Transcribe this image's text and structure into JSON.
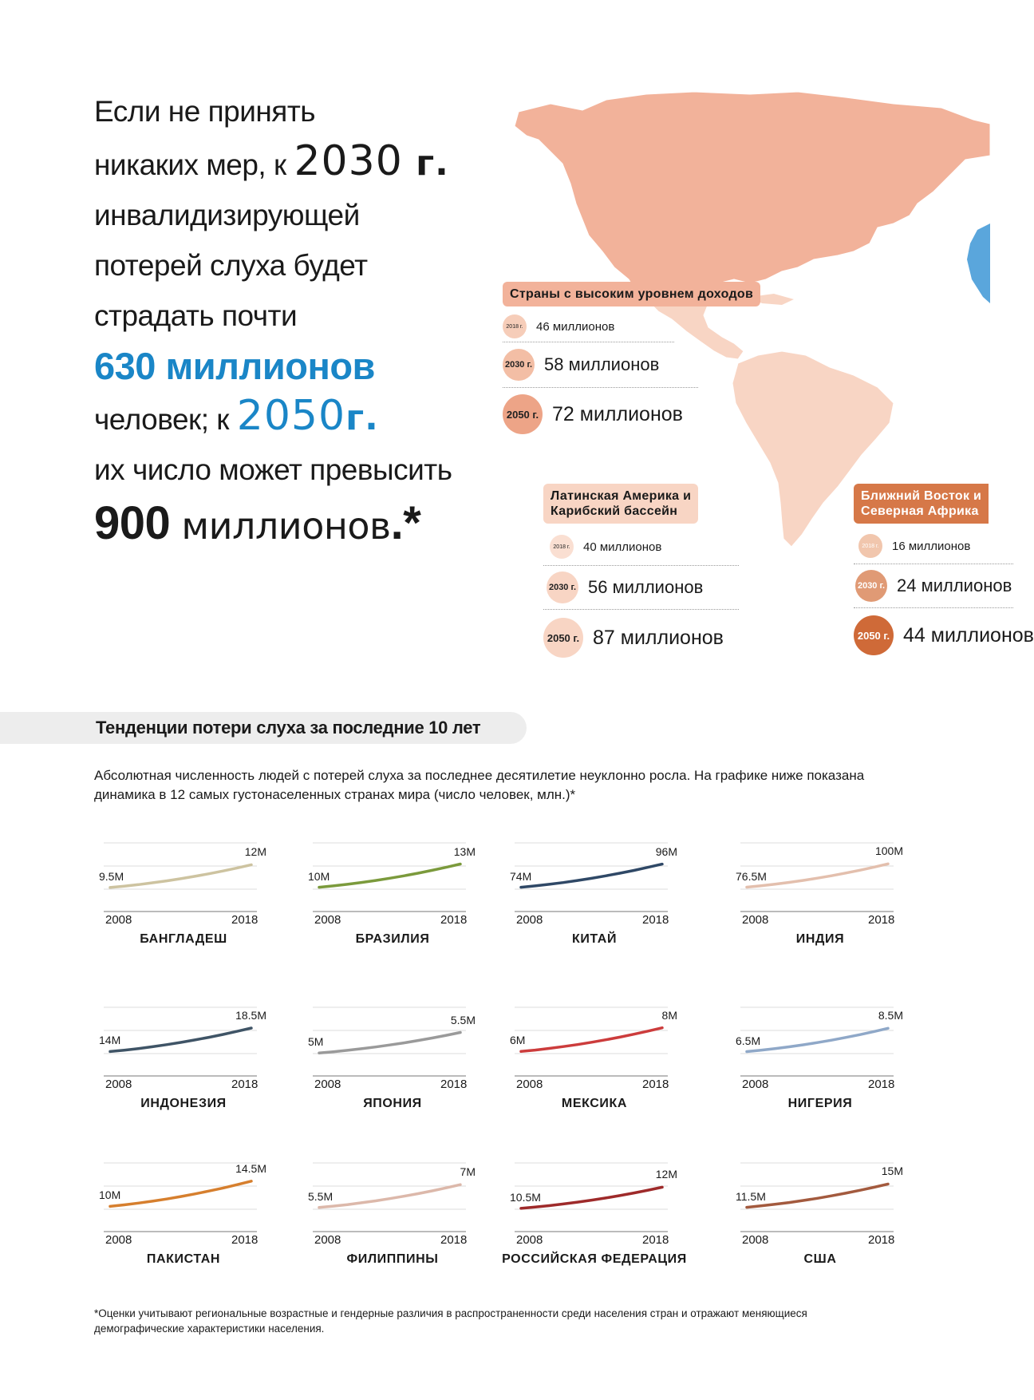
{
  "headline": {
    "l1": "Если не принять",
    "l2_pre": "никаких мер, к ",
    "l2_year": "2030",
    "l2_unit": " г.",
    "l3": "инвалидизирующей",
    "l4": "потерей слуха будет",
    "l5": "страдать почти",
    "l6": "630 миллионов",
    "l7_pre": "человек; к ",
    "l7_year": "2050",
    "l7_unit": "г.",
    "l8": "их число может превысить",
    "l9_num": "900",
    "l9_text": " миллионов",
    "l9_mark": ".*"
  },
  "colors": {
    "accent_blue": "#1a86c7",
    "high_income": "#f2b29a",
    "latin_america": "#f8d5c4",
    "mena_light": "#f1c6ad",
    "mena_mid": "#e09a75",
    "mena_dark": "#cf6a38",
    "africa_blue": "#5aa6dc"
  },
  "regions": {
    "high_income": {
      "title": "Страны с высоким уровнем доходов",
      "rows": [
        {
          "year": "2018 г.",
          "value": "46 миллионов"
        },
        {
          "year": "2030 г.",
          "value": "58 миллионов"
        },
        {
          "year": "2050 г.",
          "value": "72 миллионов"
        }
      ]
    },
    "latin_america": {
      "title_l1": "Латинская Америка и",
      "title_l2": "Карибский бассейн",
      "rows": [
        {
          "year": "2018 г.",
          "value": "40 миллионов"
        },
        {
          "year": "2030 г.",
          "value": "56 миллионов"
        },
        {
          "year": "2050 г.",
          "value": "87 миллионов"
        }
      ]
    },
    "mena": {
      "title_l1": "Ближний Восток и",
      "title_l2": "Северная Африка",
      "rows": [
        {
          "year": "2018 г.",
          "value": "16 миллионов"
        },
        {
          "year": "2030 г.",
          "value": "24 миллионов"
        },
        {
          "year": "2050 г.",
          "value": "44 миллионов"
        }
      ]
    }
  },
  "section": {
    "title": "Тенденции потери слуха за последние 10 лет",
    "intro": "Абсолютная численность людей с потерей слуха за последнее десятилетие неуклонно росла. На графике ниже показана динамика в 12 самых густонаселенных странах мира (число человек, млн.)*"
  },
  "chart_data": {
    "type": "line",
    "x": [
      2008,
      2018
    ],
    "tick_labels": [
      "2008",
      "2018"
    ],
    "series": [
      {
        "name": "БАНГЛАДЕШ",
        "start": 9.5,
        "end": 12,
        "start_label": "9.5M",
        "end_label": "12M",
        "color": "#cdc3a0"
      },
      {
        "name": "БРАЗИЛИЯ",
        "start": 10,
        "end": 13,
        "start_label": "10M",
        "end_label": "13M",
        "color": "#7b9a3c"
      },
      {
        "name": "КИТАЙ",
        "start": 74,
        "end": 96,
        "start_label": "74M",
        "end_label": "96M",
        "color": "#2f4866"
      },
      {
        "name": "ИНДИЯ",
        "start": 76.5,
        "end": 100,
        "start_label": "76.5M",
        "end_label": "100M",
        "color": "#e3bfad"
      },
      {
        "name": "ИНДОНЕЗИЯ",
        "start": 14,
        "end": 18.5,
        "start_label": "14M",
        "end_label": "18.5M",
        "color": "#3f5466"
      },
      {
        "name": "ЯПОНИЯ",
        "start": 5,
        "end": 5.5,
        "start_label": "5M",
        "end_label": "5.5M",
        "color": "#9a9a9a"
      },
      {
        "name": "МЕКСИКА",
        "start": 6,
        "end": 8,
        "start_label": "6M",
        "end_label": "8M",
        "color": "#cc3c3c"
      },
      {
        "name": "НИГЕРИЯ",
        "start": 6.5,
        "end": 8.5,
        "start_label": "6.5M",
        "end_label": "8.5M",
        "color": "#8fa8c8"
      },
      {
        "name": "ПАКИСТАН",
        "start": 10,
        "end": 14.5,
        "start_label": "10M",
        "end_label": "14.5M",
        "color": "#d67f2e"
      },
      {
        "name": "ФИЛИППИНЫ",
        "start": 5.5,
        "end": 7,
        "start_label": "5.5M",
        "end_label": "7M",
        "color": "#dcb8aa"
      },
      {
        "name": "РОССИЙСКАЯ ФЕДЕРАЦИЯ",
        "start": 10.5,
        "end": 12,
        "start_label": "10.5M",
        "end_label": "12M",
        "color": "#9e2a2a"
      },
      {
        "name": "США",
        "start": 11.5,
        "end": 15,
        "start_label": "11.5M",
        "end_label": "15M",
        "color": "#a35a3e"
      }
    ]
  },
  "footnote": "*Оценки учитывают региональные возрастные и гендерные различия в распространенности среди населения стран и отражают меняющиеся демографические характеристики населения."
}
